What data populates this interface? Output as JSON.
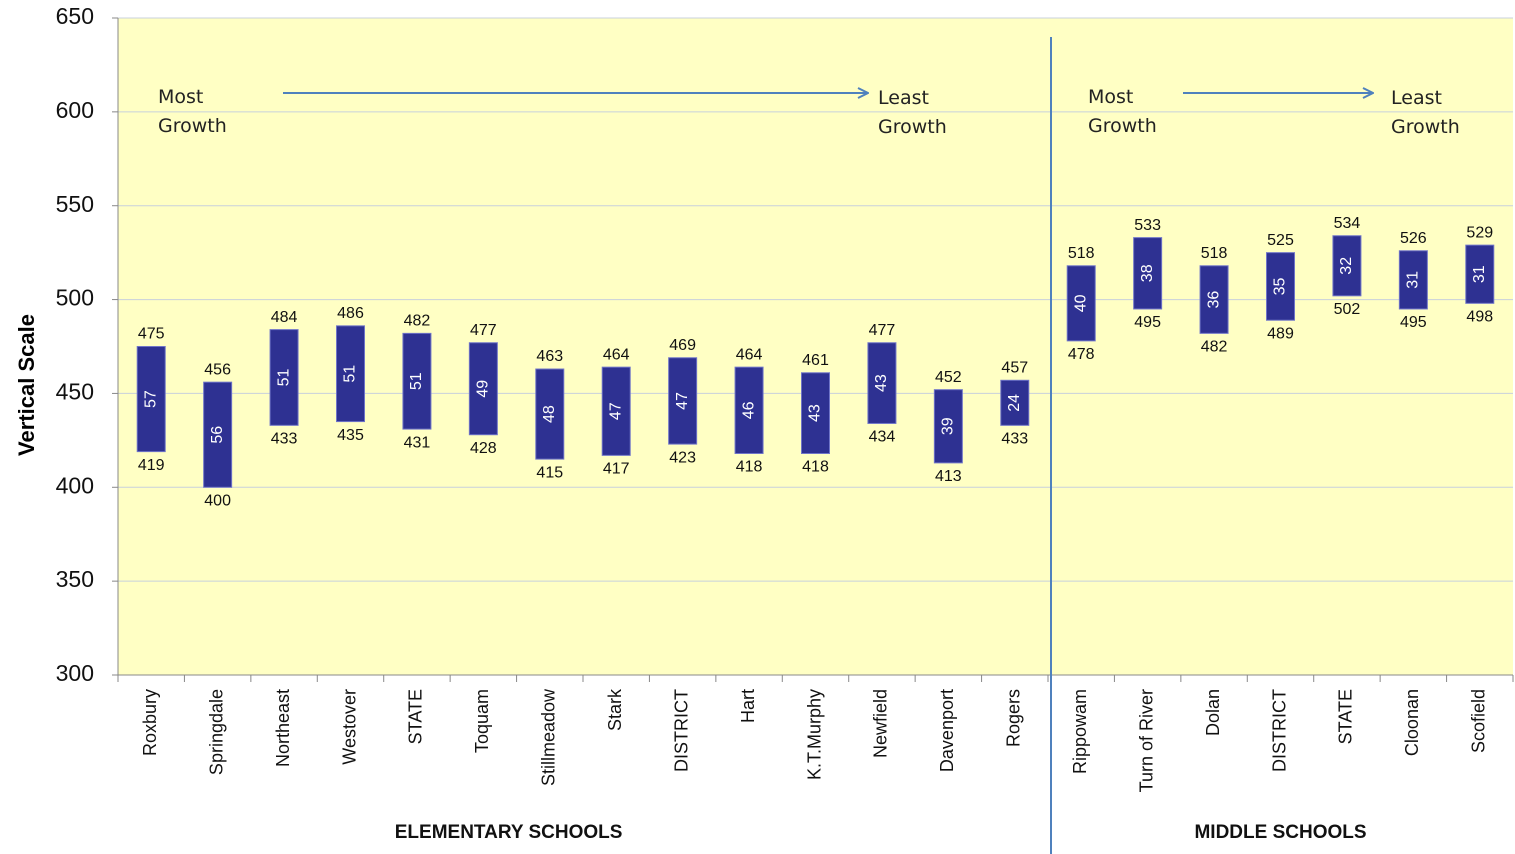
{
  "chart_data": {
    "type": "floating_bar",
    "y_label": "Vertical Scale",
    "ylim": [
      300,
      650
    ],
    "yticks": [
      300,
      350,
      400,
      450,
      500,
      550,
      600,
      650
    ],
    "grid": true,
    "color": "#2e3192",
    "background": "#ffffc4",
    "groups": [
      {
        "name": "ELEMENTARY SCHOOLS",
        "from_label": "Most Growth",
        "to_label": "Least Growth",
        "categories": [
          "Roxbury",
          "Springdale",
          "Northeast",
          "Westover",
          "STATE",
          "Toquam",
          "Stillmeadow",
          "Stark",
          "DISTRICT",
          "Hart",
          "K.T.Murphy",
          "Newfield",
          "Davenport",
          "Rogers"
        ],
        "low": [
          419,
          400,
          433,
          435,
          431,
          428,
          415,
          417,
          423,
          418,
          418,
          434,
          413,
          433
        ],
        "high": [
          475,
          456,
          484,
          486,
          482,
          477,
          463,
          464,
          469,
          464,
          461,
          477,
          452,
          457
        ],
        "growth": [
          57,
          56,
          51,
          51,
          51,
          49,
          48,
          47,
          47,
          46,
          43,
          43,
          39,
          24
        ]
      },
      {
        "name": "MIDDLE SCHOOLS",
        "from_label": "Most Growth",
        "to_label": "Least Growth",
        "categories": [
          "Rippowam",
          "Turn of River",
          "Dolan",
          "DISTRICT",
          "STATE",
          "Cloonan",
          "Scofield"
        ],
        "low": [
          478,
          495,
          482,
          489,
          502,
          495,
          498
        ],
        "high": [
          518,
          533,
          518,
          525,
          534,
          526,
          529
        ],
        "growth": [
          40,
          38,
          36,
          35,
          32,
          31,
          31
        ]
      }
    ]
  }
}
